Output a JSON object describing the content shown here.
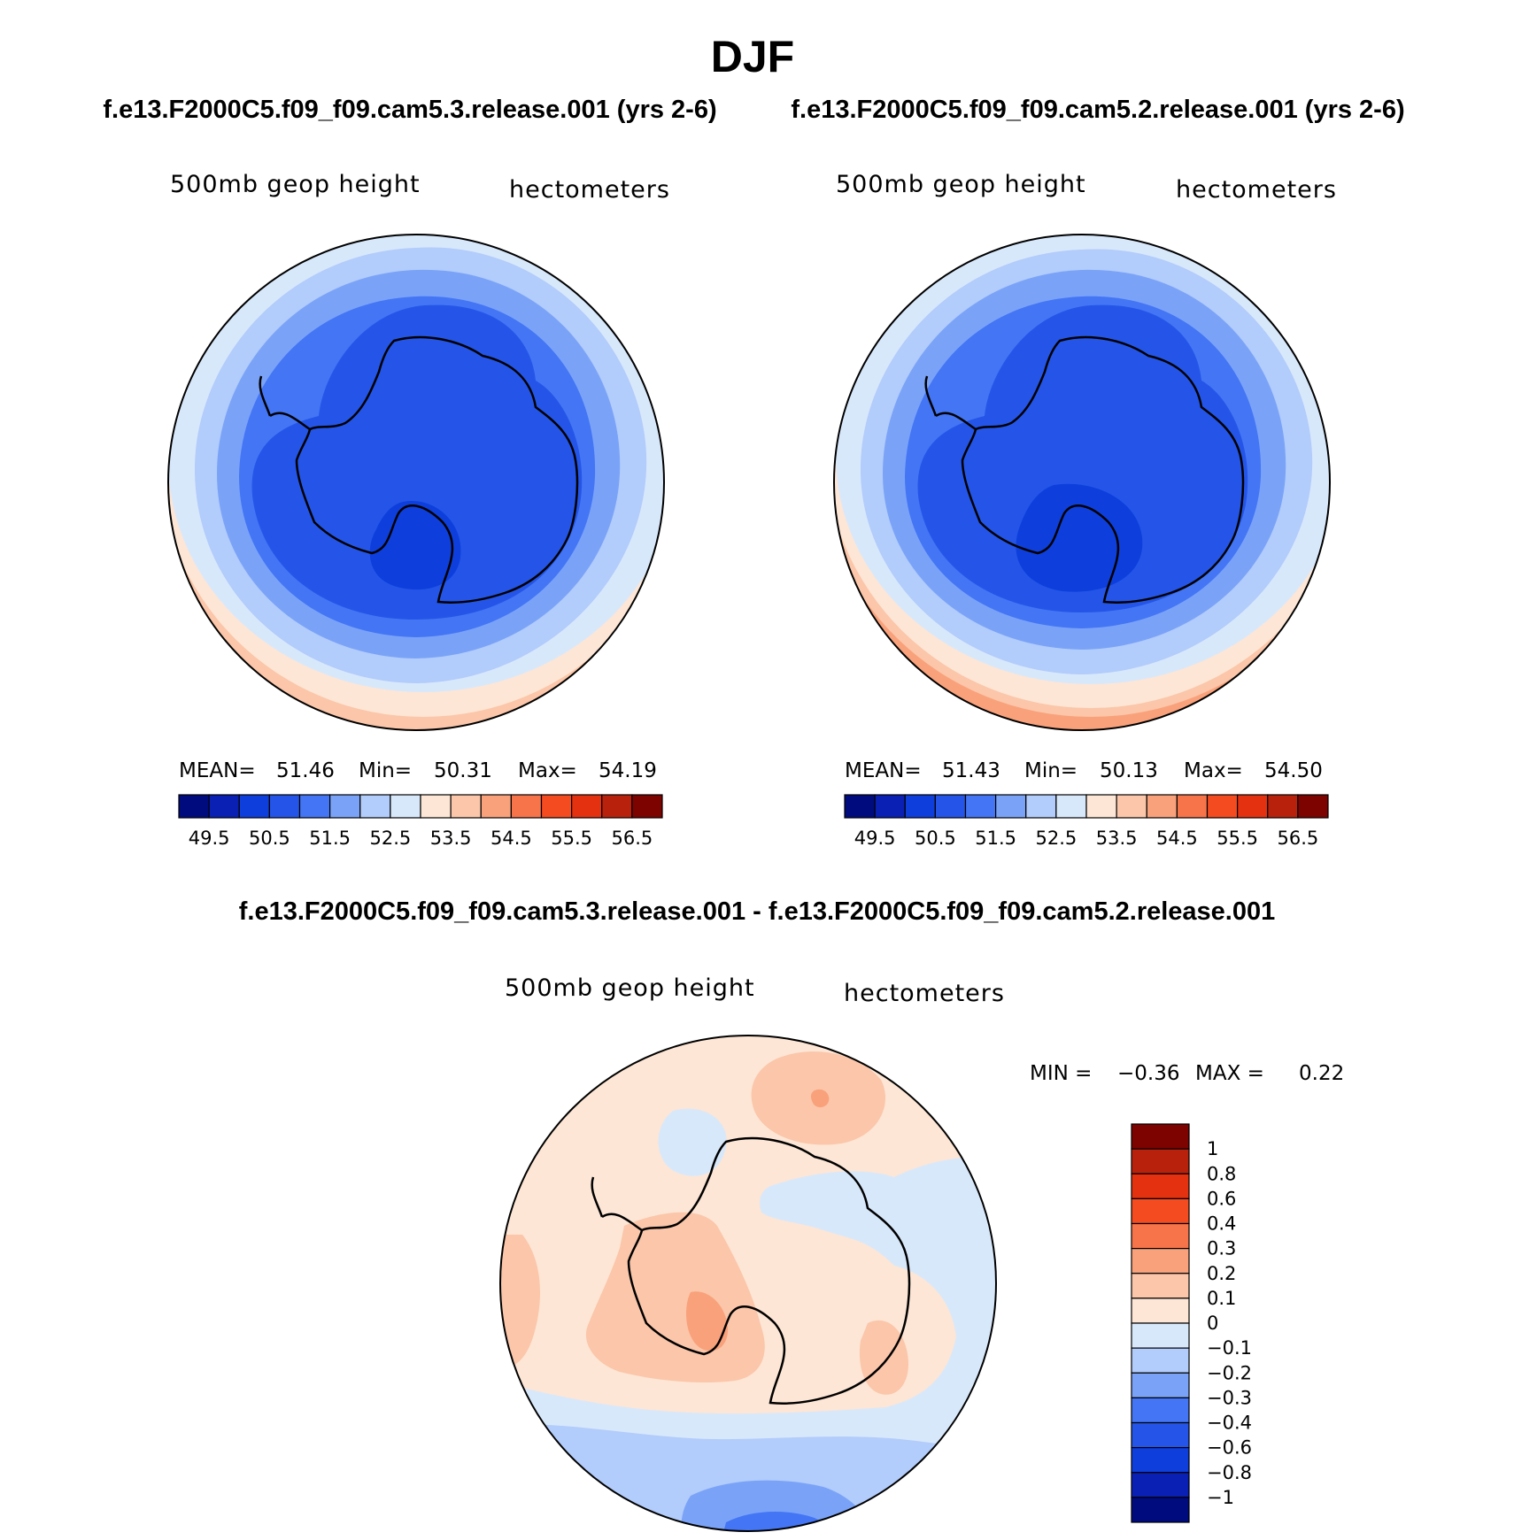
{
  "figure": {
    "title": "DJF",
    "left_case": "f.e13.F2000C5.f09_f09.cam5.3.release.001 (yrs 2-6)",
    "right_case": "f.e13.F2000C5.f09_f09.cam5.2.release.001 (yrs 2-6)",
    "diff_title": "f.e13.F2000C5.f09_f09.cam5.3.release.001 - f.e13.F2000C5.f09_f09.cam5.2.release.001"
  },
  "palettes": {
    "abs": [
      "#000c7d",
      "#0a20b4",
      "#0e3fdc",
      "#2455e8",
      "#4375f5",
      "#7aa3f8",
      "#b2ccfb",
      "#d8e8fb",
      "#fde6d5",
      "#fbc6a9",
      "#f9a17b",
      "#f7744a",
      "#f44c20",
      "#e43211",
      "#b8220c",
      "#7d0300"
    ],
    "diff": [
      "#7d0300",
      "#b8220c",
      "#e43211",
      "#f44c20",
      "#f7744a",
      "#f9a17b",
      "#fbc6a9",
      "#fde6d5",
      "#d8e8fb",
      "#b2ccfb",
      "#7aa3f8",
      "#4375f5",
      "#2455e8",
      "#0e3fdc",
      "#0a20b4",
      "#000c7d"
    ]
  },
  "chart_data": [
    {
      "type": "heatmap",
      "panel": "left",
      "projection": "south-polar-stereographic",
      "field": "500mb geop height",
      "units": "hectometers",
      "stats": {
        "mean_label": "MEAN=",
        "mean": "51.46",
        "min_label": "Min=",
        "min": "50.31",
        "max_label": "Max=",
        "max": "54.19"
      },
      "colorbar_ticks": [
        "49.5",
        "50.5",
        "51.5",
        "52.5",
        "53.5",
        "54.5",
        "55.5",
        "56.5"
      ],
      "contour_levels": [
        49.5,
        49.75,
        50,
        50.25,
        50.5,
        50.75,
        51,
        51.25,
        51.5,
        51.75,
        52,
        52.25,
        52.5,
        52.75,
        53,
        53.25,
        53.5,
        53.75,
        54,
        54.25,
        54.5,
        54.75,
        55,
        55.25,
        55.5,
        55.75,
        56,
        56.25,
        56.5
      ]
    },
    {
      "type": "heatmap",
      "panel": "right",
      "projection": "south-polar-stereographic",
      "field": "500mb geop height",
      "units": "hectometers",
      "stats": {
        "mean_label": "MEAN=",
        "mean": "51.43",
        "min_label": "Min=",
        "min": "50.13",
        "max_label": "Max=",
        "max": "54.50"
      },
      "colorbar_ticks": [
        "49.5",
        "50.5",
        "51.5",
        "52.5",
        "53.5",
        "54.5",
        "55.5",
        "56.5"
      ]
    },
    {
      "type": "heatmap",
      "panel": "difference",
      "projection": "south-polar-stereographic",
      "field": "500mb geop height",
      "units": "hectometers",
      "stats": {
        "min_label": "MIN =",
        "min": "−0.36",
        "max_label": "MAX =",
        "max": "0.22"
      },
      "colorbar_ticks": [
        "1",
        "0.8",
        "0.6",
        "0.4",
        "0.3",
        "0.2",
        "0.1",
        "0",
        "−0.1",
        "−0.2",
        "−0.3",
        "−0.4",
        "−0.6",
        "−0.8",
        "−1"
      ]
    }
  ]
}
